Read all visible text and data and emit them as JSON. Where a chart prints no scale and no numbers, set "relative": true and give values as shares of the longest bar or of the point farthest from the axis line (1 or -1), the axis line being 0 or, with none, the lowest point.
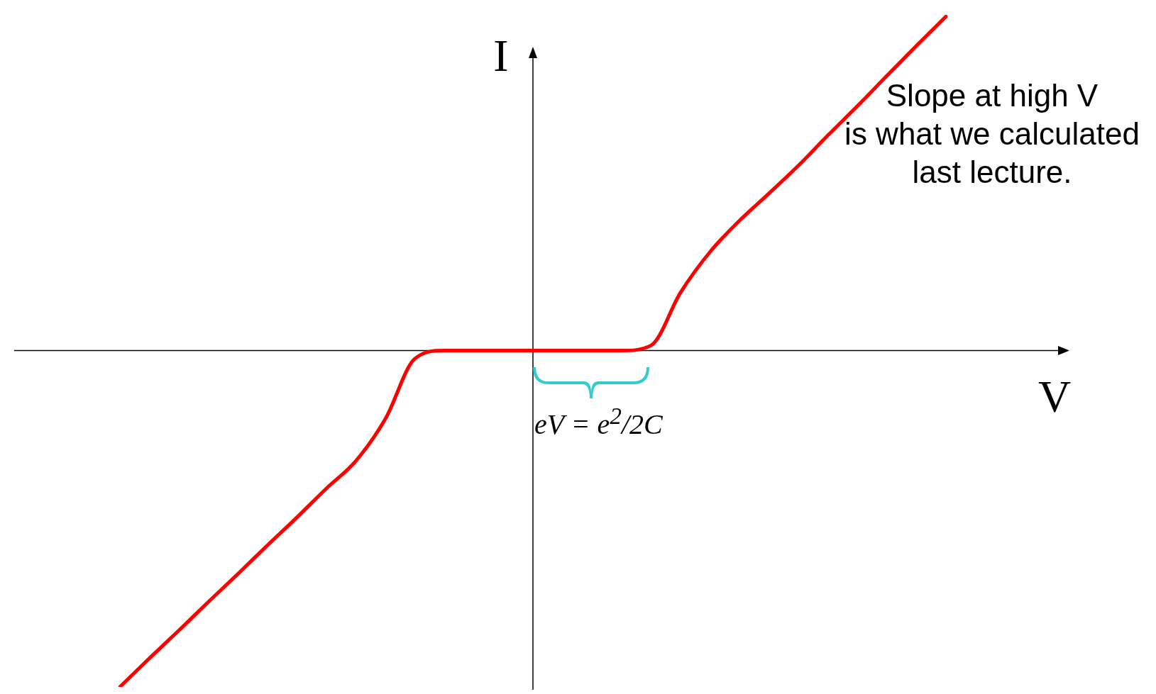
{
  "chart_data": {
    "type": "line",
    "relative": true,
    "xlabel": "V",
    "ylabel": "I",
    "categories": [
      null,
      null,
      null,
      null,
      null,
      null,
      null,
      null,
      null,
      null,
      null,
      null,
      null,
      null,
      null,
      null,
      null,
      null,
      null,
      null,
      null,
      null,
      null,
      null,
      null,
      null,
      null,
      null,
      null
    ],
    "series": [
      {
        "color": "#ff0000",
        "values": [
          -1,
          -0.915,
          -0.832,
          -0.747,
          -0.664,
          -0.579,
          -0.496,
          -0.41,
          -0.328,
          -0.203,
          -0.024,
          0,
          0,
          0,
          0,
          0,
          0,
          0,
          0.015,
          0.172,
          0.293,
          0.386,
          0.467,
          0.55,
          0.64,
          0.727,
          0.817,
          0.906,
          0.993
        ]
      }
    ],
    "annotations": [
      "Slope at high V\nis what we calculated\nlast lecture.",
      "eV = e$^{2}$/2C"
    ],
    "marker": "none",
    "line_style": "solid",
    "legend": false
  }
}
